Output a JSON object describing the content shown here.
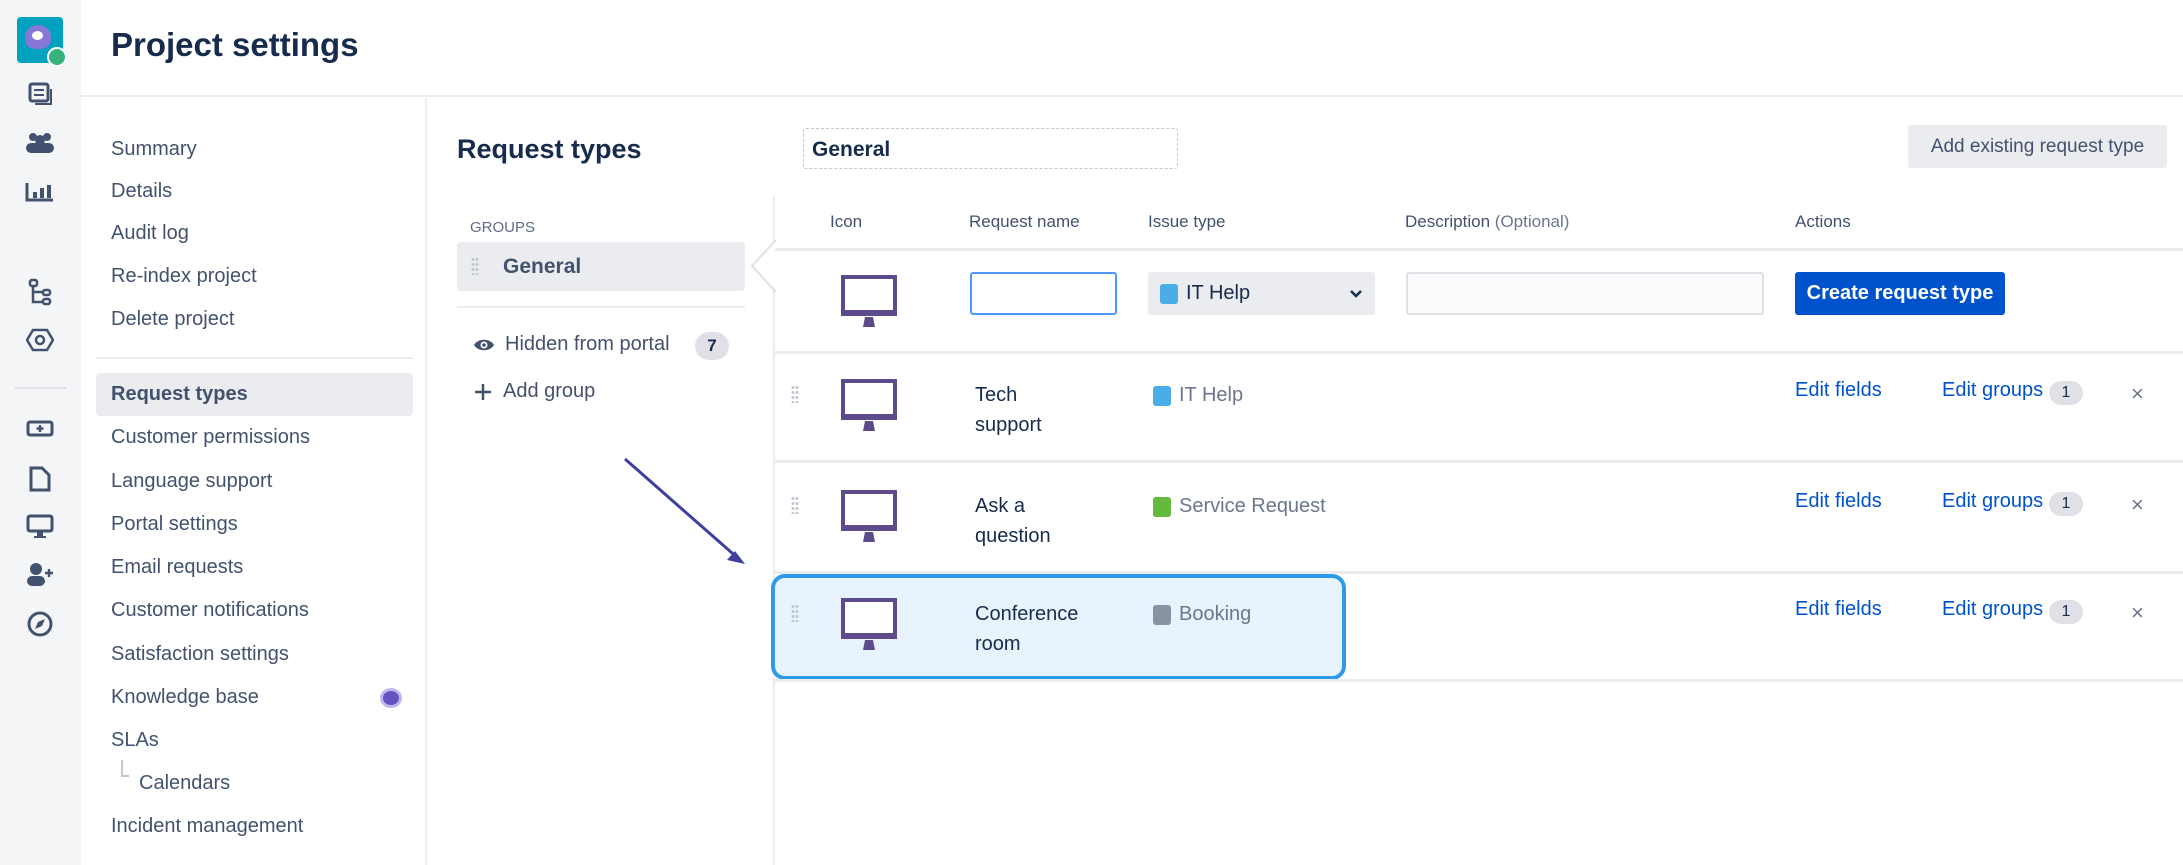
{
  "header": {
    "title": "Project settings"
  },
  "rail": {
    "icons": [
      "project-avatar",
      "queues-icon",
      "customers-icon",
      "reports-icon",
      "workflow-icon",
      "components-icon",
      "raise-request-icon",
      "pages-icon",
      "portal-icon",
      "invite-user-icon",
      "explore-icon"
    ]
  },
  "nav": {
    "items": [
      {
        "label": "Summary"
      },
      {
        "label": "Details"
      },
      {
        "label": "Audit log"
      },
      {
        "label": "Re-index project"
      },
      {
        "label": "Delete project"
      },
      {
        "label": "Request types",
        "active": true
      },
      {
        "label": "Customer permissions"
      },
      {
        "label": "Language support"
      },
      {
        "label": "Portal settings"
      },
      {
        "label": "Email requests"
      },
      {
        "label": "Customer notifications"
      },
      {
        "label": "Satisfaction settings"
      },
      {
        "label": "Knowledge base"
      },
      {
        "label": "SLAs"
      },
      {
        "label": "Calendars"
      },
      {
        "label": "Incident management"
      }
    ]
  },
  "main": {
    "title": "Request types",
    "group_name": "General",
    "add_existing": "Add existing request type",
    "groups_label": "GROUPS",
    "groups": [
      {
        "label": "General"
      }
    ],
    "hidden_label": "Hidden from portal",
    "hidden_count": "7",
    "add_group": "Add group",
    "table": {
      "headers": {
        "icon": "Icon",
        "name": "Request name",
        "issue": "Issue type",
        "desc": "Description",
        "desc_opt": "(Optional)",
        "actions": "Actions"
      },
      "new_row": {
        "name_value": "",
        "issue_value": "IT Help",
        "desc_value": "",
        "create": "Create request type"
      },
      "rows": [
        {
          "name1": "Tech",
          "name2": "support",
          "issue": "IT Help",
          "issue_color": "#4bade8",
          "edit_fields": "Edit fields",
          "edit_groups": "Edit groups",
          "groups_count": "1",
          "remove": "×"
        },
        {
          "name1": "Ask a",
          "name2": "question",
          "issue": "Service Request",
          "issue_color": "#63ba3c",
          "edit_fields": "Edit fields",
          "edit_groups": "Edit groups",
          "groups_count": "1",
          "remove": "×"
        },
        {
          "name1": "Conference",
          "name2": "room",
          "issue": "Booking",
          "issue_color": "#8993a4",
          "edit_fields": "Edit fields",
          "edit_groups": "Edit groups",
          "groups_count": "1",
          "remove": "×",
          "highlighted": true
        }
      ]
    }
  },
  "colors": {
    "accent": "#0052cc",
    "highlight": "#2d9be8",
    "icon_purple": "#5e4b8b",
    "annotation_arrow": "#3f3fa0"
  }
}
